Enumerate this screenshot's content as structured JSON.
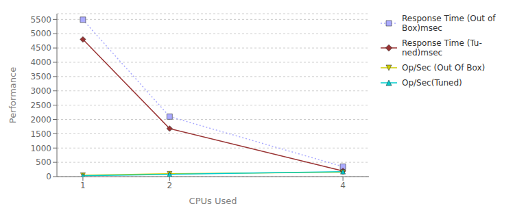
{
  "chart_data": {
    "type": "line",
    "xlabel": "CPUs Used",
    "ylabel": "Performance",
    "x": [
      1,
      2,
      4
    ],
    "xlim": [
      0.7,
      4.3
    ],
    "xticks": [
      1,
      2,
      4
    ],
    "ylim": [
      0,
      5700
    ],
    "yticks": [
      0,
      500,
      1000,
      1500,
      2000,
      2500,
      3000,
      3500,
      4000,
      4500,
      5000,
      5500
    ],
    "grid": true,
    "legend": "right",
    "series": [
      {
        "name": "Response Time (Out of\nBox)msec",
        "color": "#aaaaff",
        "line_style": "dotted",
        "marker": "square",
        "values": [
          5490,
          2100,
          350
        ]
      },
      {
        "name": "Response Time (Tu-\nned)msec",
        "color": "#993333",
        "line_style": "solid",
        "marker": "diamond",
        "values": [
          4800,
          1680,
          200
        ]
      },
      {
        "name": "Op/Sec (Out Of Box)",
        "color": "#cccc00",
        "line_style": "solid",
        "marker": "triangle-down",
        "values": [
          50,
          100,
          155
        ]
      },
      {
        "name": "Op/Sec(Tuned)",
        "color": "#00cccc",
        "line_style": "solid",
        "marker": "triangle-up",
        "values": [
          30,
          80,
          175
        ]
      }
    ]
  }
}
